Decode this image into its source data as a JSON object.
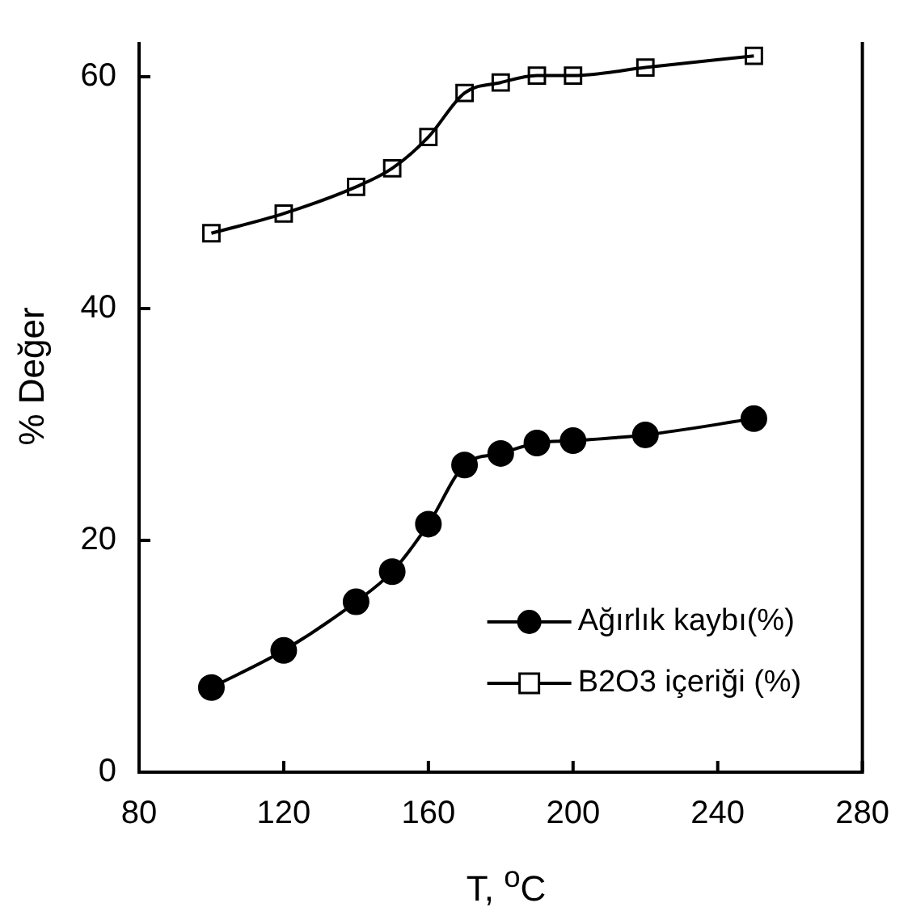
{
  "chart_data": {
    "type": "line",
    "xlabel": "T, $^{o}$C",
    "ylabel": "% Değer",
    "x": [
      100,
      120,
      140,
      150,
      160,
      170,
      180,
      190,
      200,
      220,
      250
    ],
    "series": [
      {
        "name": "Ağırlık kaybı(%)",
        "color": "#000000",
        "marker": "circle",
        "values": [
          7.3,
          10.5,
          14.7,
          17.3,
          21.4,
          26.5,
          27.5,
          28.4,
          28.6,
          29.1,
          30.5
        ]
      },
      {
        "name": "B2O3 içeriği (%)",
        "color": "#000000",
        "marker": "square",
        "values": [
          46.5,
          48.2,
          50.5,
          52.1,
          54.8,
          58.6,
          59.5,
          60.1,
          60.1,
          60.8,
          61.8
        ]
      }
    ],
    "xlim": [
      80,
      280
    ],
    "xticks": [
      80,
      120,
      160,
      200,
      240,
      280
    ],
    "ylim": [
      0,
      63
    ],
    "yticks": [
      0,
      20,
      40,
      60
    ],
    "grid": false,
    "legend": "bottom right",
    "line_style": "solid"
  }
}
